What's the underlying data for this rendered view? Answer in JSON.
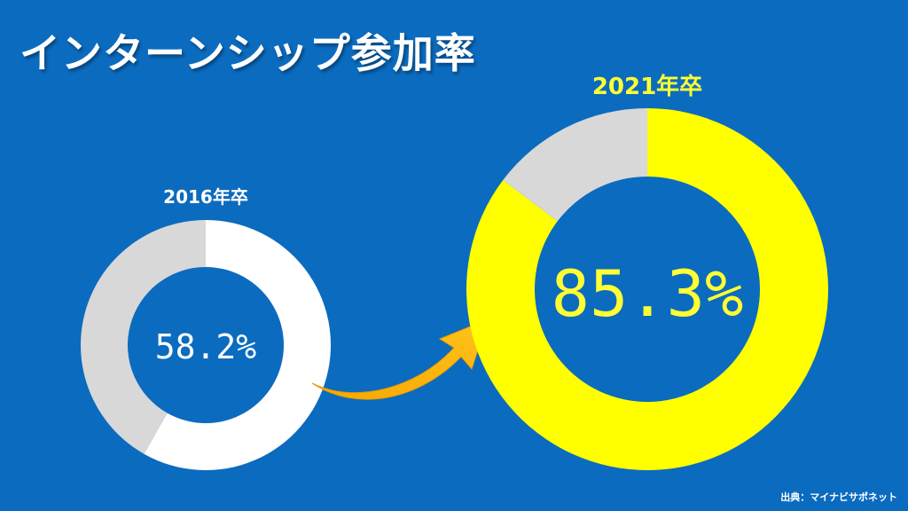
{
  "slide": {
    "title": "インターンシップ参加率",
    "source": "出典：マイナビサポネット"
  },
  "colors": {
    "background": "#0b6bbf",
    "remainder": "#d8d8d8",
    "donut_2016": "#ffffff",
    "donut_2021": "#ffff00",
    "label_2016": "#ffffff",
    "label_2021": "#ffff33",
    "arrow": "#f6b400"
  },
  "chart_data": [
    {
      "type": "pie",
      "title": "2016年卒",
      "value": 58.2,
      "remainder": 41.8,
      "value_label": "58.2%",
      "unit": "%"
    },
    {
      "type": "pie",
      "title": "2021年卒",
      "value": 85.3,
      "remainder": 14.7,
      "value_label": "85.3%",
      "unit": "%"
    }
  ]
}
